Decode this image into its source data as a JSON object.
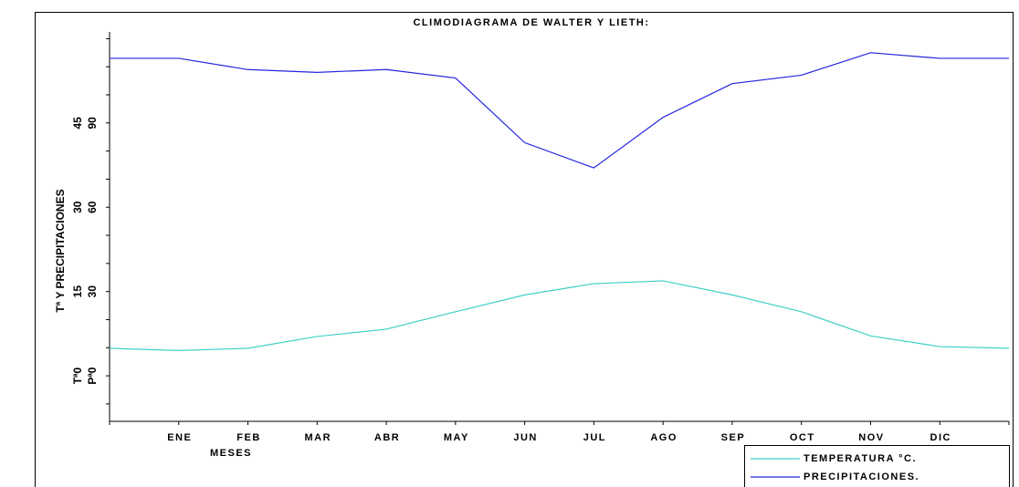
{
  "chart_data": {
    "type": "line",
    "title": "CLIMODIAGRAMA DE WALTER Y LIETH:",
    "ylabel": "Tª Y  PRECIPITACIONES",
    "xlabel": "MESES",
    "categories": [
      null,
      "ENE",
      "FEB",
      "MAR",
      "ABR",
      "MAY",
      "JUN",
      "JUL",
      "AGO",
      "SEP",
      "OCT",
      "NOV",
      "DIC",
      null
    ],
    "series": [
      {
        "name": "TEMPERATURA °C.",
        "color": "#40cfc8",
        "axis": "y",
        "values": [
          4.9,
          4.5,
          4.9,
          7.0,
          8.3,
          11.4,
          14.4,
          16.4,
          16.9,
          14.4,
          11.4,
          7.1,
          5.2,
          4.9
        ]
      },
      {
        "name": "PRECIPITACIONES.",
        "color": "#2424e0",
        "axis": "y2",
        "values": [
          113,
          113,
          109,
          108,
          109,
          106,
          83,
          74,
          92,
          104,
          107,
          115,
          113,
          113
        ]
      }
    ],
    "ylim": [
      -8.1,
      61.2
    ],
    "yticks": [
      {
        "value": 0,
        "label": "Tª0"
      },
      15,
      30,
      45
    ],
    "minor_yticks": [
      -5,
      0,
      5,
      10,
      15,
      20,
      25,
      30,
      35,
      40,
      45,
      50,
      55,
      60
    ],
    "y2lim": [
      -16.2,
      122.4
    ],
    "y2ticks": [
      {
        "value": 0,
        "label": "Pª0"
      },
      30,
      60,
      90
    ],
    "grid": false,
    "legend": "bottom-right"
  }
}
